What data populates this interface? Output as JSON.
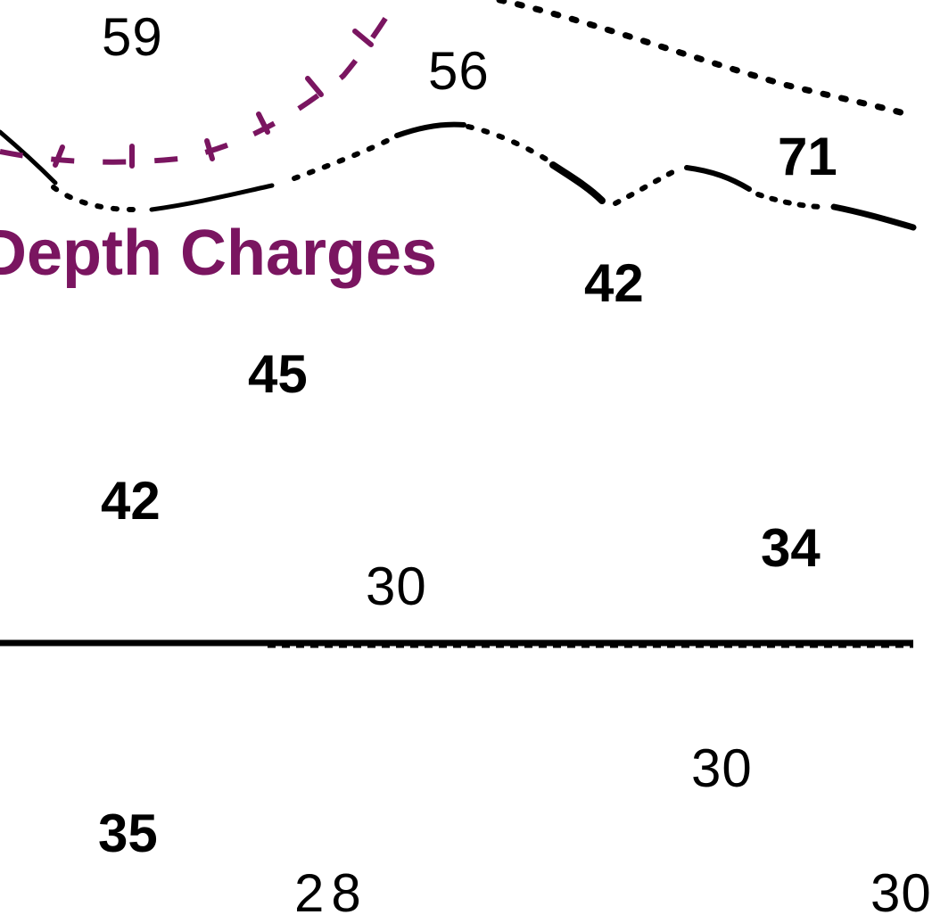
{
  "area_label": "Depth Charges",
  "colors": {
    "area": "#7a1560",
    "ink": "#000000",
    "background": "#ffffff"
  },
  "soundings": [
    {
      "value": "59"
    },
    {
      "value": "56"
    },
    {
      "value": "71"
    },
    {
      "value": "42"
    },
    {
      "value": "45"
    },
    {
      "value": "42"
    },
    {
      "value": "30"
    },
    {
      "value": "34"
    },
    {
      "value": "30"
    },
    {
      "value": "35"
    },
    {
      "value": "28"
    },
    {
      "value": "30"
    }
  ]
}
